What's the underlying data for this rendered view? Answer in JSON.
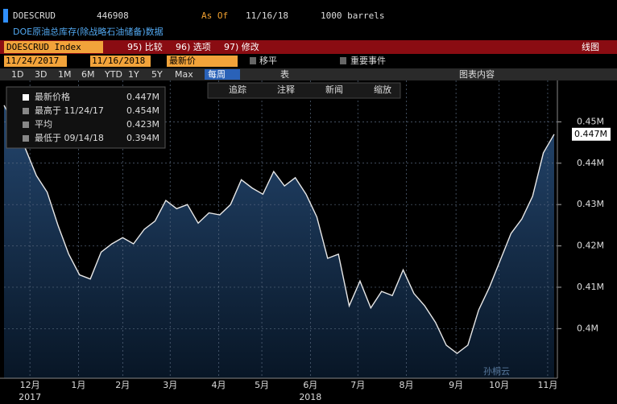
{
  "header": {
    "ticker": "DOESCRUD",
    "value": "446908",
    "as_of_label": "As Of",
    "as_of_date": "11/16/18",
    "units": "1000 barrels",
    "description": "DOE原油总库存(除战略石油储备)数据"
  },
  "toolbar": {
    "security": "DOESCRUD Index",
    "buttons": [
      "95) 比较",
      "96) 选项",
      "97) 修改"
    ],
    "chart_type": "线图"
  },
  "controls": {
    "start_date": "11/24/2017",
    "end_date": "11/16/2018",
    "price_field": "最新价",
    "moving_avg": "移平",
    "events": "重要事件"
  },
  "ranges": {
    "buttons": [
      "1D",
      "3D",
      "1M",
      "6M",
      "YTD",
      "1Y",
      "5Y",
      "Max"
    ],
    "period": "每周",
    "table": "表",
    "chart_content": "图表内容"
  },
  "chart_tools": [
    "追踪",
    "注释",
    "新闻",
    "缩放"
  ],
  "watermark": "孙桐云",
  "chart_data": {
    "type": "area",
    "series_name": "DOESCRUD Index",
    "color": "#e8e8e8",
    "fill": "#1b3a5e",
    "values": [
      0.454,
      0.449,
      0.4434,
      0.437,
      0.433,
      0.425,
      0.418,
      0.413,
      0.412,
      0.4185,
      0.4205,
      0.422,
      0.4205,
      0.424,
      0.426,
      0.431,
      0.429,
      0.43,
      0.4255,
      0.428,
      0.4275,
      0.43,
      0.436,
      0.434,
      0.4325,
      0.438,
      0.4345,
      0.4365,
      0.4325,
      0.427,
      0.417,
      0.418,
      0.4055,
      0.4115,
      0.405,
      0.409,
      0.408,
      0.4142,
      0.4085,
      0.4055,
      0.4015,
      0.396,
      0.394,
      0.396,
      0.4045,
      0.41,
      0.4165,
      0.423,
      0.4265,
      0.432,
      0.4425,
      0.447
    ],
    "current_label": "0.447M",
    "legend": [
      {
        "label": "最新价格",
        "value": "0.447M"
      },
      {
        "label": "最高于 11/24/17",
        "value": "0.454M"
      },
      {
        "label": "平均",
        "value": "0.423M"
      },
      {
        "label": "最低于 09/14/18",
        "value": "0.394M"
      }
    ],
    "ylim": [
      0.388,
      0.46
    ],
    "yticks": [
      {
        "value": 0.4,
        "label": "0.4M"
      },
      {
        "value": 0.41,
        "label": "0.41M"
      },
      {
        "value": 0.42,
        "label": "0.42M"
      },
      {
        "value": 0.43,
        "label": "0.43M"
      },
      {
        "value": 0.44,
        "label": "0.44M"
      },
      {
        "value": 0.45,
        "label": "0.45M"
      }
    ],
    "xlim": [
      0,
      51.3
    ],
    "xticks": [
      {
        "value": 2.4,
        "label": "12月"
      },
      {
        "value": 6.9,
        "label": "1月"
      },
      {
        "value": 11,
        "label": "2月"
      },
      {
        "value": 15.4,
        "label": "3月"
      },
      {
        "value": 19.9,
        "label": "4月"
      },
      {
        "value": 23.9,
        "label": "5月"
      },
      {
        "value": 28.4,
        "label": "6月"
      },
      {
        "value": 32.8,
        "label": "7月"
      },
      {
        "value": 37.3,
        "label": "8月"
      },
      {
        "value": 41.9,
        "label": "9月"
      },
      {
        "value": 45.9,
        "label": "10月"
      },
      {
        "value": 50.4,
        "label": "11月"
      }
    ],
    "years": [
      {
        "value": 2.4,
        "label": "2017"
      },
      {
        "value": 28.4,
        "label": "2018"
      }
    ],
    "grid": true
  }
}
